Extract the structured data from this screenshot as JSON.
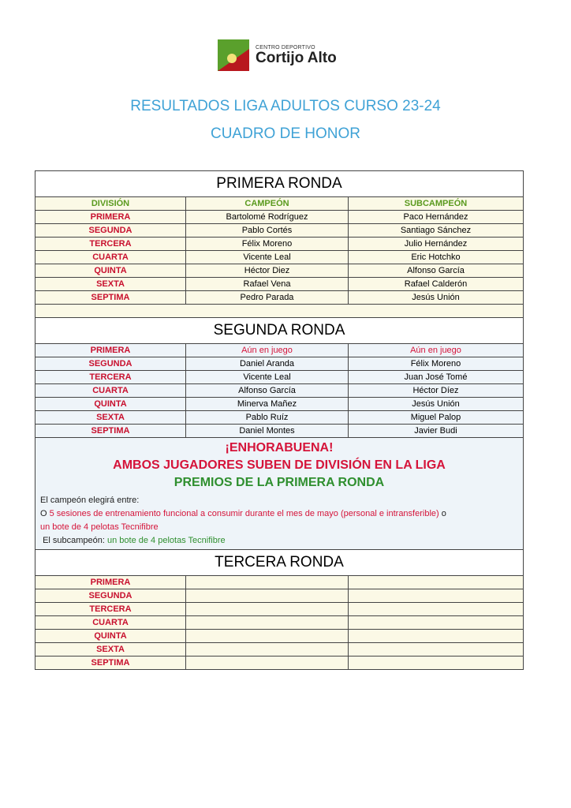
{
  "logo": {
    "small": "CENTRO DEPORTIVO",
    "big": "Cortijo Alto"
  },
  "title1": "RESULTADOS LIGA ADULTOS CURSO 23-24",
  "title2": "CUADRO DE HONOR",
  "primera": {
    "title": "PRIMERA RONDA",
    "headers": [
      "DIVISIÓN",
      "CAMPEÓN",
      "SUBCAMPEÓN"
    ],
    "rows": [
      [
        "PRIMERA",
        "Bartolomé Rodríguez",
        "Paco Hernández"
      ],
      [
        "SEGUNDA",
        "Pablo Cortés",
        "Santiago Sánchez"
      ],
      [
        "TERCERA",
        "Félix Moreno",
        "Julio Hernández"
      ],
      [
        "CUARTA",
        "Vicente Leal",
        "Eric Hotchko"
      ],
      [
        "QUINTA",
        "Héctor Diez",
        "Alfonso García"
      ],
      [
        "SEXTA",
        "Rafael Vena",
        "Rafael Calderón"
      ],
      [
        "SEPTIMA",
        "Pedro Parada",
        "Jesús Unión"
      ]
    ]
  },
  "segunda": {
    "title": "SEGUNDA RONDA",
    "rows": [
      [
        "PRIMERA",
        "Aún en juego",
        "Aún en juego"
      ],
      [
        "SEGUNDA",
        "Daniel Aranda",
        "Félix Moreno"
      ],
      [
        "TERCERA",
        "Vicente Leal",
        "Juan José Tomé"
      ],
      [
        "CUARTA",
        "Alfonso García",
        "Héctor Díez"
      ],
      [
        "QUINTA",
        "Minerva Mañez",
        "Jesús Unión"
      ],
      [
        "SEXTA",
        "Pablo Ruíz",
        "Miguel Palop"
      ],
      [
        "SEPTIMA",
        "Daniel Montes",
        "Javier Budi"
      ]
    ]
  },
  "congrats": {
    "line1": "¡ENHORABUENA!",
    "line2": "AMBOS JUGADORES SUBEN DE DIVISIÓN EN LA LIGA",
    "line3": "PREMIOS  DE LA PRIMERA RONDA",
    "champ_intro": "El campeón elegirá entre:",
    "o1": "O ",
    "opt1": "5 sesiones de entrenamiento funcional a consumir durante el mes de mayo (personal e intransferible)",
    "o2": " o",
    "opt2": "un bote de 4 pelotas Tecnifibre",
    "sub_label": "El subcampeón: ",
    "sub_prize": "un bote de 4 pelotas Tecnifibre"
  },
  "tercera": {
    "title": "TERCERA RONDA",
    "divisions": [
      "PRIMERA",
      "SEGUNDA",
      "TERCERA",
      "CUARTA",
      "QUINTA",
      "SEXTA",
      "SEPTIMA"
    ]
  }
}
